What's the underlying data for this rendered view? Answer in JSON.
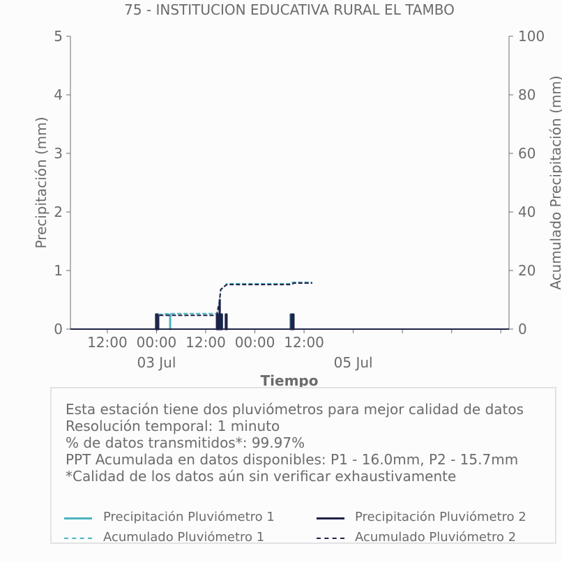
{
  "chart_data": {
    "type": "line",
    "title": "75 - INSTITUCION EDUCATIVA RURAL EL TAMBO",
    "xlabel": "Tiempo",
    "ylabel_left": "Precipitación (mm)",
    "ylabel_right": "Acumulado Precipitación (mm)",
    "ylim_left": [
      0,
      5
    ],
    "ylim_right": [
      0,
      100
    ],
    "yticks_left": [
      "0",
      "1",
      "2",
      "3",
      "4",
      "5"
    ],
    "yticks_right": [
      "0",
      "20",
      "40",
      "60",
      "80",
      "100"
    ],
    "xlim": [
      "2024-07-02T03:00",
      "2024-07-06T14:00"
    ],
    "xticks": [
      {
        "t": "2024-07-02T12:00",
        "label": "12:00",
        "sub": ""
      },
      {
        "t": "2024-07-03T00:00",
        "label": "00:00",
        "sub": "03 Jul"
      },
      {
        "t": "2024-07-03T12:00",
        "label": "12:00",
        "sub": ""
      },
      {
        "t": "2024-07-04T00:00",
        "label": "00:00",
        "sub": ""
      },
      {
        "t": "2024-07-04T12:00",
        "label": "12:00",
        "sub": ""
      },
      {
        "t": "2024-07-05T00:00",
        "label": "00:00",
        "sub": "05 Jul"
      },
      {
        "t": "2024-07-05T12:00",
        "label": "12:00",
        "sub": ""
      },
      {
        "t": "2024-07-06T00:00",
        "label": "00:00",
        "sub": ""
      },
      {
        "t": "2024-07-06T12:00",
        "label": "12:00",
        "sub": ""
      }
    ],
    "xtick_labels_visible": [
      {
        "t": "2024-07-02T12:00",
        "label": "12:00"
      },
      {
        "t": "2024-07-03T00:00",
        "label": "00:00"
      },
      {
        "t": "2024-07-03T12:00",
        "label": "12:00"
      },
      {
        "t": "2024-07-04T00:00",
        "label": "00:00"
      },
      {
        "t": "2024-07-04T12:00",
        "label": "12:00"
      }
    ],
    "xtick_sublabels": [
      {
        "t": "2024-07-03T00:00",
        "label": "03 Jul"
      },
      {
        "t": "2024-07-05T00:00",
        "label": "05 Jul"
      }
    ],
    "series": [
      {
        "name": "Precipitación Pluviómetro 1",
        "axis": "left",
        "color": "#4bb3c0",
        "style": "solid",
        "events": [
          {
            "t": "2024-07-03T00:00",
            "v": 0.25
          },
          {
            "t": "2024-07-03T00:20",
            "v": 0.25
          },
          {
            "t": "2024-07-03T03:20",
            "v": 0.25
          },
          {
            "t": "2024-07-03T14:50",
            "v": 0.25
          },
          {
            "t": "2024-07-03T15:20",
            "v": 0.25
          },
          {
            "t": "2024-07-03T15:40",
            "v": 0.25
          },
          {
            "t": "2024-07-03T16:00",
            "v": 0.25
          },
          {
            "t": "2024-07-03T17:00",
            "v": 0.25
          },
          {
            "t": "2024-07-04T08:40",
            "v": 0.25
          },
          {
            "t": "2024-07-04T09:10",
            "v": 0.25
          }
        ]
      },
      {
        "name": "Precipitación Pluviómetro 2",
        "axis": "left",
        "color": "#1f2246",
        "style": "solid",
        "events": [
          {
            "t": "2024-07-02T23:55",
            "v": 0.25
          },
          {
            "t": "2024-07-03T00:05",
            "v": 0.25
          },
          {
            "t": "2024-07-03T00:15",
            "v": 0.25
          },
          {
            "t": "2024-07-03T00:25",
            "v": 0.25
          },
          {
            "t": "2024-07-03T14:45",
            "v": 0.25
          },
          {
            "t": "2024-07-03T14:55",
            "v": 0.25
          },
          {
            "t": "2024-07-03T15:05",
            "v": 0.25
          },
          {
            "t": "2024-07-03T15:15",
            "v": 0.25
          },
          {
            "t": "2024-07-03T15:25",
            "v": 0.5
          },
          {
            "t": "2024-07-03T15:35",
            "v": 0.25
          },
          {
            "t": "2024-07-03T15:45",
            "v": 0.25
          },
          {
            "t": "2024-07-03T15:55",
            "v": 0.25
          },
          {
            "t": "2024-07-03T16:55",
            "v": 0.25
          },
          {
            "t": "2024-07-03T17:05",
            "v": 0.25
          },
          {
            "t": "2024-07-04T08:55",
            "v": 0.25
          },
          {
            "t": "2024-07-04T09:25",
            "v": 0.25
          }
        ]
      },
      {
        "name": "Acumulado Pluviómetro 1",
        "axis": "right",
        "color": "#4bb3c0",
        "style": "dashed",
        "points": [
          {
            "t": "2024-07-02T03:00",
            "v": 0
          },
          {
            "t": "2024-07-02T23:55",
            "v": 0
          },
          {
            "t": "2024-07-03T00:30",
            "v": 5.0
          },
          {
            "t": "2024-07-03T03:20",
            "v": 5.3
          },
          {
            "t": "2024-07-03T14:45",
            "v": 5.3
          },
          {
            "t": "2024-07-03T15:20",
            "v": 9.5
          },
          {
            "t": "2024-07-03T15:40",
            "v": 13.5
          },
          {
            "t": "2024-07-03T16:30",
            "v": 14.5
          },
          {
            "t": "2024-07-03T17:10",
            "v": 15.5
          },
          {
            "t": "2024-07-04T08:40",
            "v": 15.5
          },
          {
            "t": "2024-07-04T09:10",
            "v": 16.0
          },
          {
            "t": "2024-07-04T14:00",
            "v": 16.0
          }
        ]
      },
      {
        "name": "Acumulado Pluviómetro 2",
        "axis": "right",
        "color": "#1f2246",
        "style": "dashed",
        "points": [
          {
            "t": "2024-07-02T03:00",
            "v": 0
          },
          {
            "t": "2024-07-02T23:55",
            "v": 0
          },
          {
            "t": "2024-07-03T00:30",
            "v": 4.7
          },
          {
            "t": "2024-07-03T14:40",
            "v": 4.7
          },
          {
            "t": "2024-07-03T15:20",
            "v": 9.0
          },
          {
            "t": "2024-07-03T15:40",
            "v": 13.5
          },
          {
            "t": "2024-07-03T16:30",
            "v": 14.5
          },
          {
            "t": "2024-07-03T17:10",
            "v": 15.2
          },
          {
            "t": "2024-07-04T08:50",
            "v": 15.2
          },
          {
            "t": "2024-07-04T09:30",
            "v": 15.7
          },
          {
            "t": "2024-07-04T14:00",
            "v": 15.7
          }
        ]
      }
    ],
    "grid": false
  },
  "info": {
    "lines": [
      "Esta estación tiene dos pluviómetros para mejor calidad de datos",
      "Resolución temporal: 1 minuto",
      "% de datos transmitidos*: 99.97%",
      "PPT Acumulada en datos disponibles: P1 - 16.0mm, P2 - 15.7mm",
      "*Calidad de los datos aún sin verificar exhaustivamente"
    ]
  },
  "legend": {
    "placement": "bottom",
    "items": [
      {
        "label": "Precipitación Pluviómetro 1",
        "color": "#4bb3c0",
        "style": "solid"
      },
      {
        "label": "Precipitación Pluviómetro 2",
        "color": "#1f2246",
        "style": "solid"
      },
      {
        "label": "Acumulado Pluviómetro 1",
        "color": "#4bb3c0",
        "style": "dashed"
      },
      {
        "label": "Acumulado Pluviómetro 2",
        "color": "#1f2246",
        "style": "dashed"
      }
    ]
  }
}
